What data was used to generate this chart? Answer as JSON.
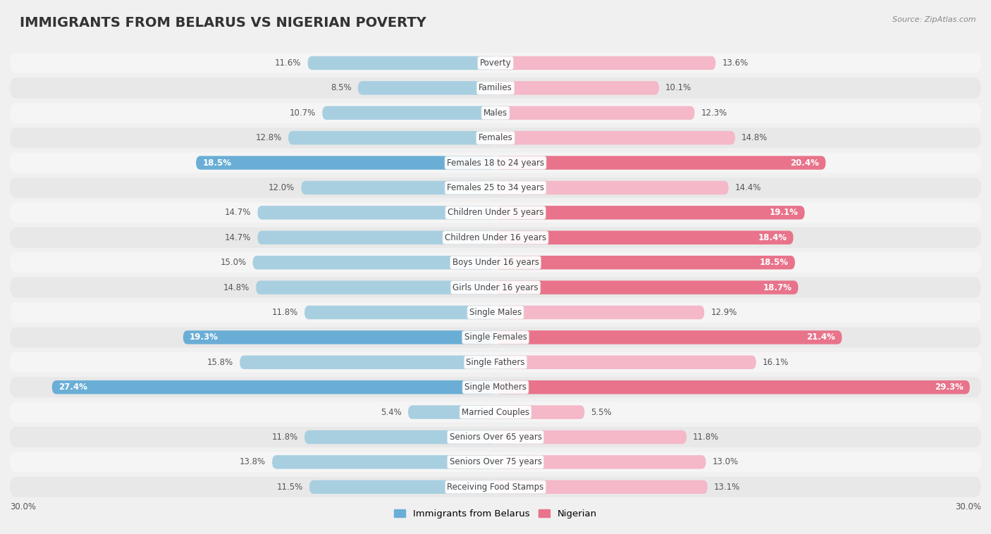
{
  "title": "IMMIGRANTS FROM BELARUS VS NIGERIAN POVERTY",
  "source": "Source: ZipAtlas.com",
  "categories": [
    "Poverty",
    "Families",
    "Males",
    "Females",
    "Females 18 to 24 years",
    "Females 25 to 34 years",
    "Children Under 5 years",
    "Children Under 16 years",
    "Boys Under 16 years",
    "Girls Under 16 years",
    "Single Males",
    "Single Females",
    "Single Fathers",
    "Single Mothers",
    "Married Couples",
    "Seniors Over 65 years",
    "Seniors Over 75 years",
    "Receiving Food Stamps"
  ],
  "belarus_values": [
    11.6,
    8.5,
    10.7,
    12.8,
    18.5,
    12.0,
    14.7,
    14.7,
    15.0,
    14.8,
    11.8,
    19.3,
    15.8,
    27.4,
    5.4,
    11.8,
    13.8,
    11.5
  ],
  "nigerian_values": [
    13.6,
    10.1,
    12.3,
    14.8,
    20.4,
    14.4,
    19.1,
    18.4,
    18.5,
    18.7,
    12.9,
    21.4,
    16.1,
    29.3,
    5.5,
    11.8,
    13.0,
    13.1
  ],
  "belarus_color_normal": "#a8cfe0",
  "belarus_color_highlight": "#6aaed6",
  "nigerian_color_normal": "#f4b8c8",
  "nigerian_color_highlight": "#e8738a",
  "belarus_label": "Immigrants from Belarus",
  "nigerian_label": "Nigerian",
  "bg_color": "#f0f0f0",
  "row_bg_color": "#e8e8e8",
  "row_stripe_color": "#f5f5f5",
  "max_val": 30,
  "highlight_belarus_indices": [
    4,
    11,
    13
  ],
  "highlight_nigerian_indices": [
    4,
    6,
    7,
    8,
    9,
    11,
    13
  ],
  "title_fontsize": 14,
  "label_fontsize": 8.5,
  "cat_fontsize": 8.5
}
